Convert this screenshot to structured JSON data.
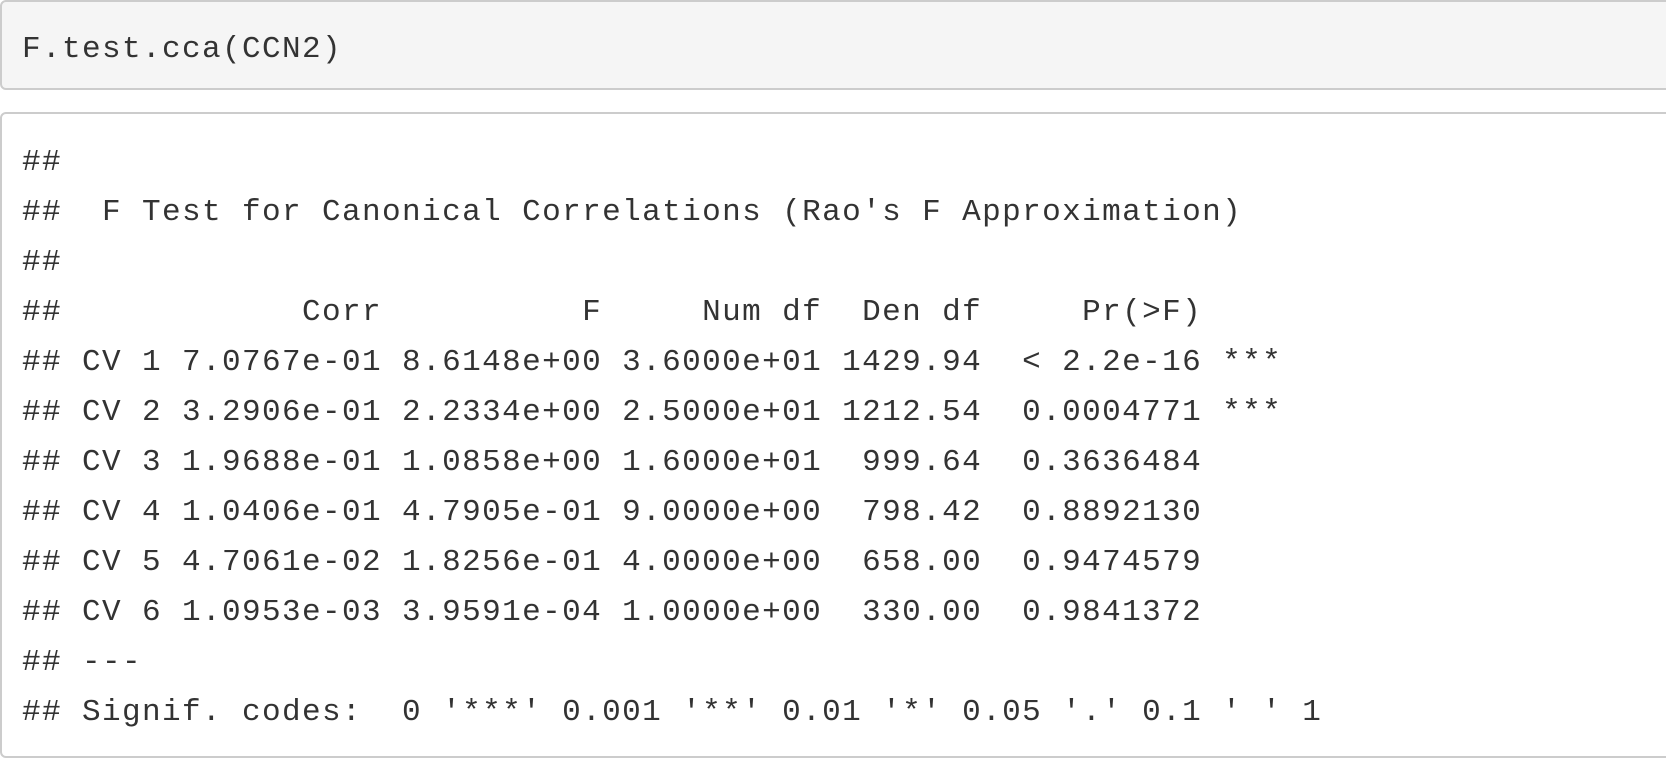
{
  "source_code": "F.test.cca(CCN2)",
  "output_lines": [
    "##",
    "##  F Test for Canonical Correlations (Rao's F Approximation)",
    "##",
    "##            Corr          F     Num df  Den df     Pr(>F)    ",
    "## CV 1 7.0767e-01 8.6148e+00 3.6000e+01 1429.94  < 2.2e-16 ***",
    "## CV 2 3.2906e-01 2.2334e+00 2.5000e+01 1212.54  0.0004771 ***",
    "## CV 3 1.9688e-01 1.0858e+00 1.6000e+01  999.64  0.3636484    ",
    "## CV 4 1.0406e-01 4.7905e-01 9.0000e+00  798.42  0.8892130    ",
    "## CV 5 4.7061e-02 1.8256e-01 4.0000e+00  658.00  0.9474579    ",
    "## CV 6 1.0953e-03 3.9591e-04 1.0000e+00  330.00  0.9841372    ",
    "## ---",
    "## Signif. codes:  0 '***' 0.001 '**' 0.01 '*' 0.05 '.' 0.1 ' ' 1"
  ]
}
